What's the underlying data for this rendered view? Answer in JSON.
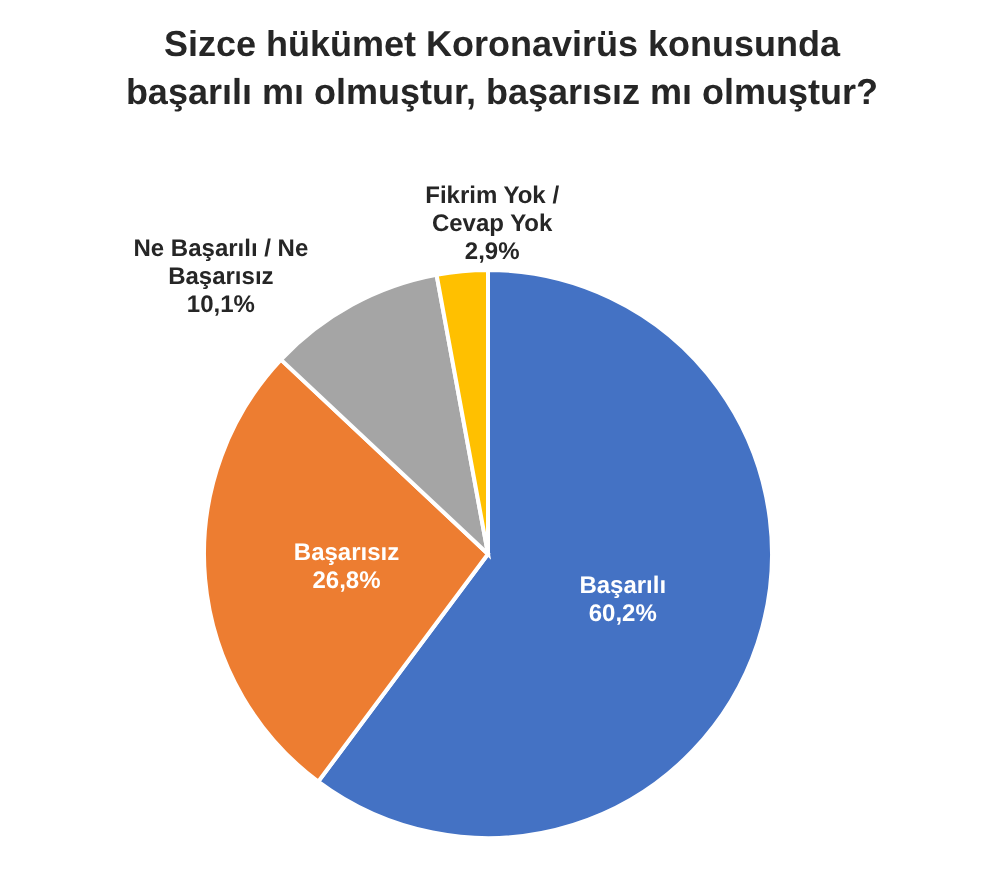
{
  "chart_data": {
    "type": "pie",
    "title": "Sizce hükümet Koronavirüs konusunda\nbaşarılı mı olmuştur, başarısız mı olmuştur?",
    "categories": [
      "Başarılı",
      "Başarısız",
      "Ne Başarılı / Ne Başarısız",
      "Fikrim Yok / Cevap Yok"
    ],
    "values": [
      60.2,
      26.8,
      10.1,
      2.9
    ],
    "value_labels": [
      "60,2%",
      "26,8%",
      "10,1%",
      "2,9%"
    ],
    "colors": [
      "#4472c4",
      "#ed7d31",
      "#a5a5a5",
      "#ffc000"
    ],
    "legend": false
  }
}
